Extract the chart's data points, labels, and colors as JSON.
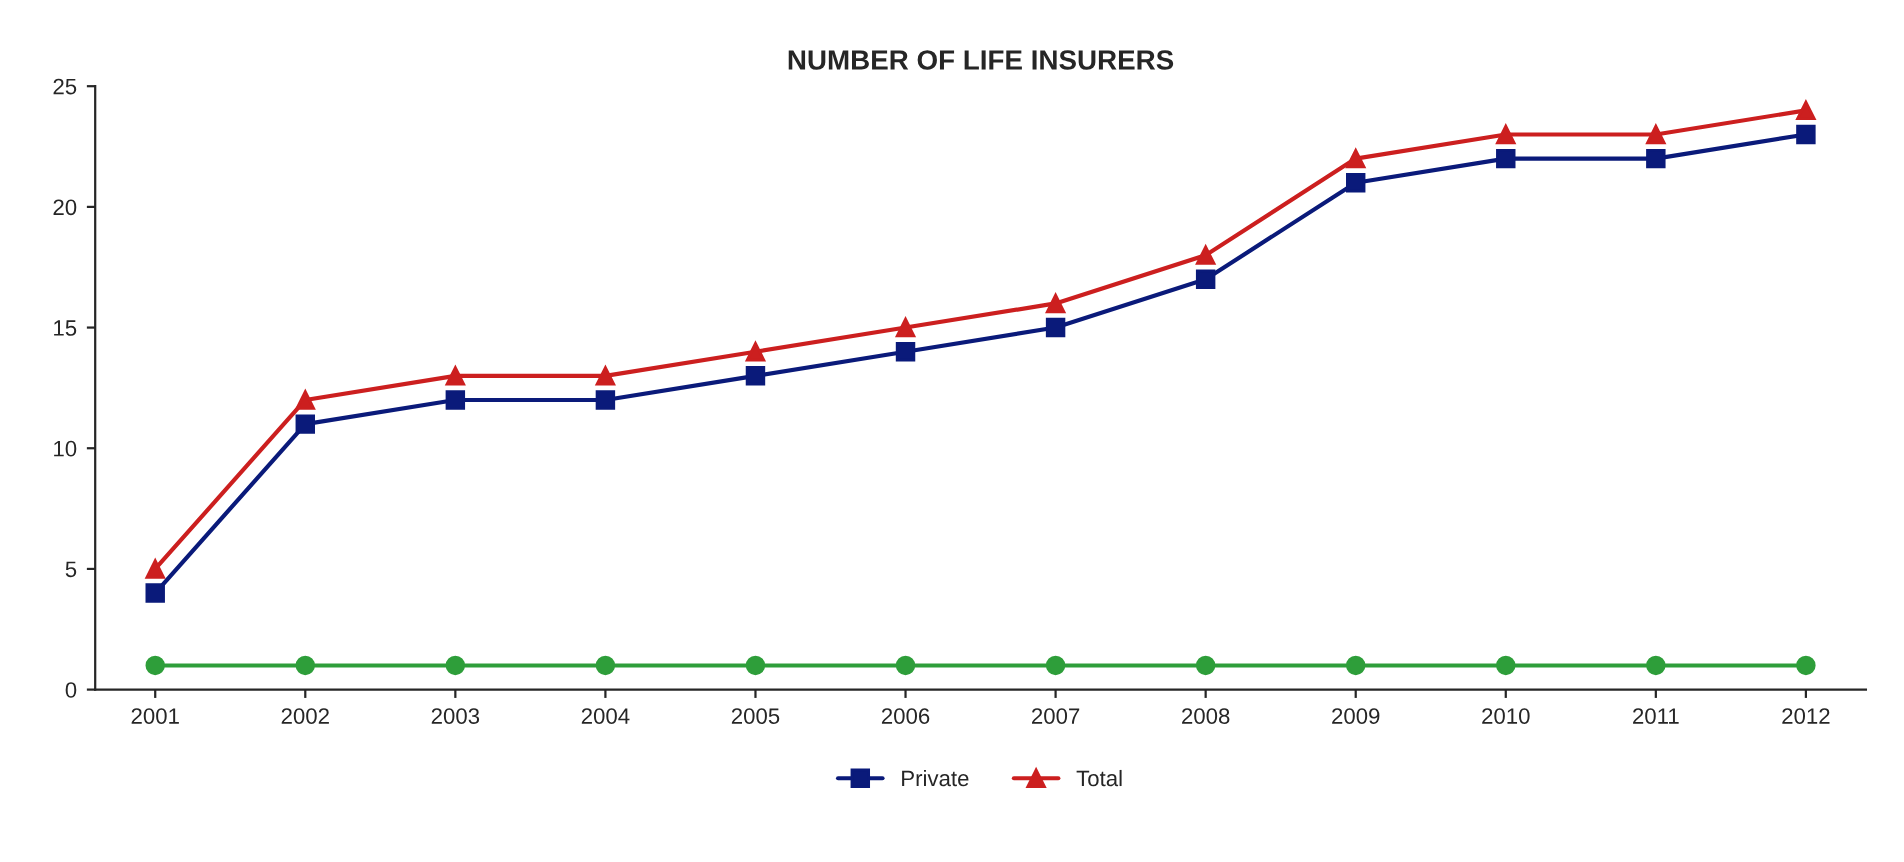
{
  "chart_data": {
    "type": "line",
    "title": "NUMBER OF LIFE INSURERS",
    "categories": [
      "2001",
      "2002",
      "2003",
      "2004",
      "2005",
      "2006",
      "2007",
      "2008",
      "2009",
      "2010",
      "2011",
      "2012"
    ],
    "series": [
      {
        "color": "#2e9e3a",
        "marker": "circle",
        "values": [
          1,
          1,
          1,
          1,
          1,
          1,
          1,
          1,
          1,
          1,
          1,
          1
        ]
      },
      {
        "name": "Private",
        "color": "#0a1a7a",
        "marker": "square",
        "values": [
          4,
          11,
          12,
          12,
          13,
          14,
          15,
          17,
          21,
          22,
          22,
          23
        ]
      },
      {
        "name": "Total",
        "color": "#cc1f1f",
        "marker": "triangle",
        "values": [
          5,
          12,
          13,
          13,
          14,
          15,
          16,
          18,
          22,
          23,
          23,
          24
        ]
      }
    ],
    "ylim": [
      0,
      25
    ],
    "yticks": [
      0,
      5,
      10,
      15,
      20,
      25
    ],
    "grid": false,
    "legend": "bottom",
    "line_style": "solid"
  }
}
